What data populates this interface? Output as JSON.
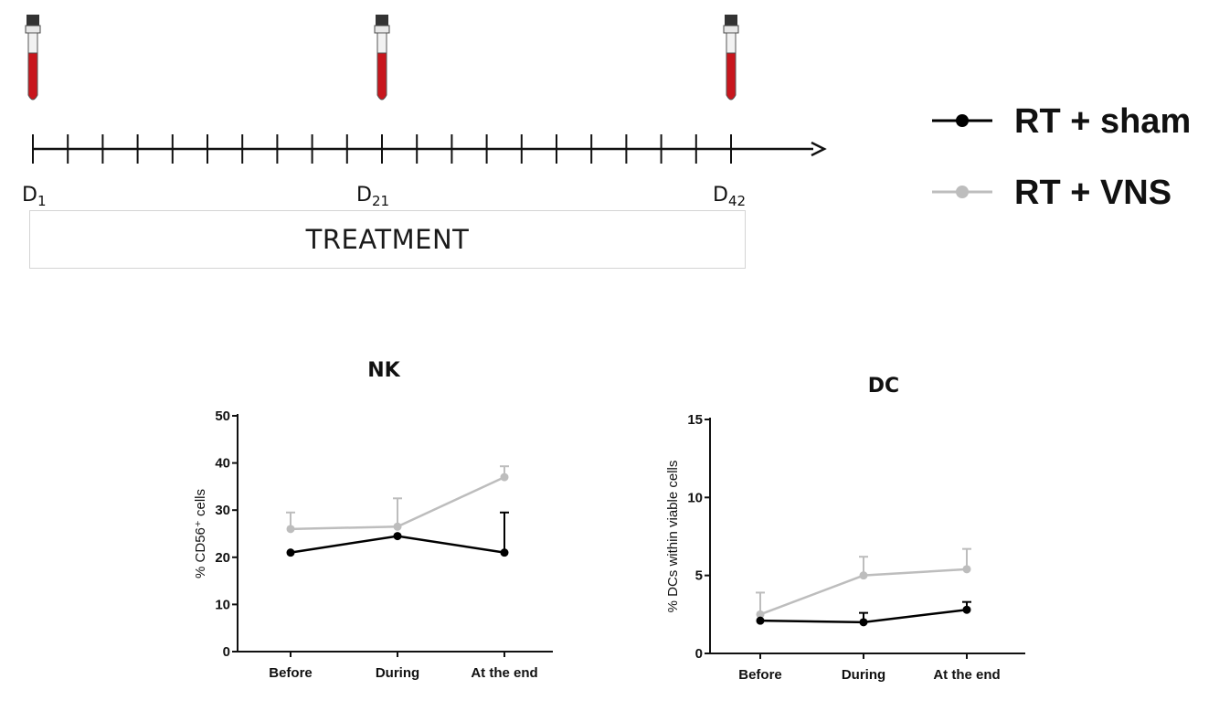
{
  "timeline": {
    "labels": [
      {
        "base": "D",
        "sub": "1"
      },
      {
        "base": "D",
        "sub": "21"
      },
      {
        "base": "D",
        "sub": "42"
      }
    ],
    "treatment_label": "TREATMENT",
    "tube_colors": {
      "cap": "#333333",
      "band": "#e8e8e8",
      "blood": "#c8161d"
    }
  },
  "legend": [
    {
      "label": "RT + sham",
      "color": "#000000"
    },
    {
      "label": "RT + VNS",
      "color": "#bdbdbd"
    }
  ],
  "colors": {
    "sham": "#000000",
    "vns": "#bdbdbd",
    "axis": "#111111"
  },
  "chart_data": [
    {
      "type": "line",
      "title": "NK",
      "xlabel": "",
      "ylabel": "% CD56⁺ cells",
      "categories": [
        "Before",
        "During",
        "At the end"
      ],
      "ylim": [
        0,
        50
      ],
      "yticks": [
        0,
        10,
        20,
        30,
        40,
        50
      ],
      "series": [
        {
          "name": "RT + sham",
          "values": [
            21,
            24.5,
            21
          ],
          "errors": [
            0,
            0,
            8.5
          ]
        },
        {
          "name": "RT + VNS",
          "values": [
            26,
            26.5,
            37
          ],
          "errors": [
            3.5,
            6,
            2.3
          ]
        }
      ]
    },
    {
      "type": "line",
      "title": "DC",
      "xlabel": "",
      "ylabel": "% DCs within viable cells",
      "categories": [
        "Before",
        "During",
        "At the end"
      ],
      "ylim": [
        0,
        15
      ],
      "yticks": [
        0,
        5,
        10,
        15
      ],
      "series": [
        {
          "name": "RT + sham",
          "values": [
            2.1,
            2.0,
            2.8
          ],
          "errors": [
            0,
            0.6,
            0.5
          ]
        },
        {
          "name": "RT + VNS",
          "values": [
            2.5,
            5.0,
            5.4
          ],
          "errors": [
            1.4,
            1.2,
            1.3
          ]
        }
      ]
    }
  ]
}
